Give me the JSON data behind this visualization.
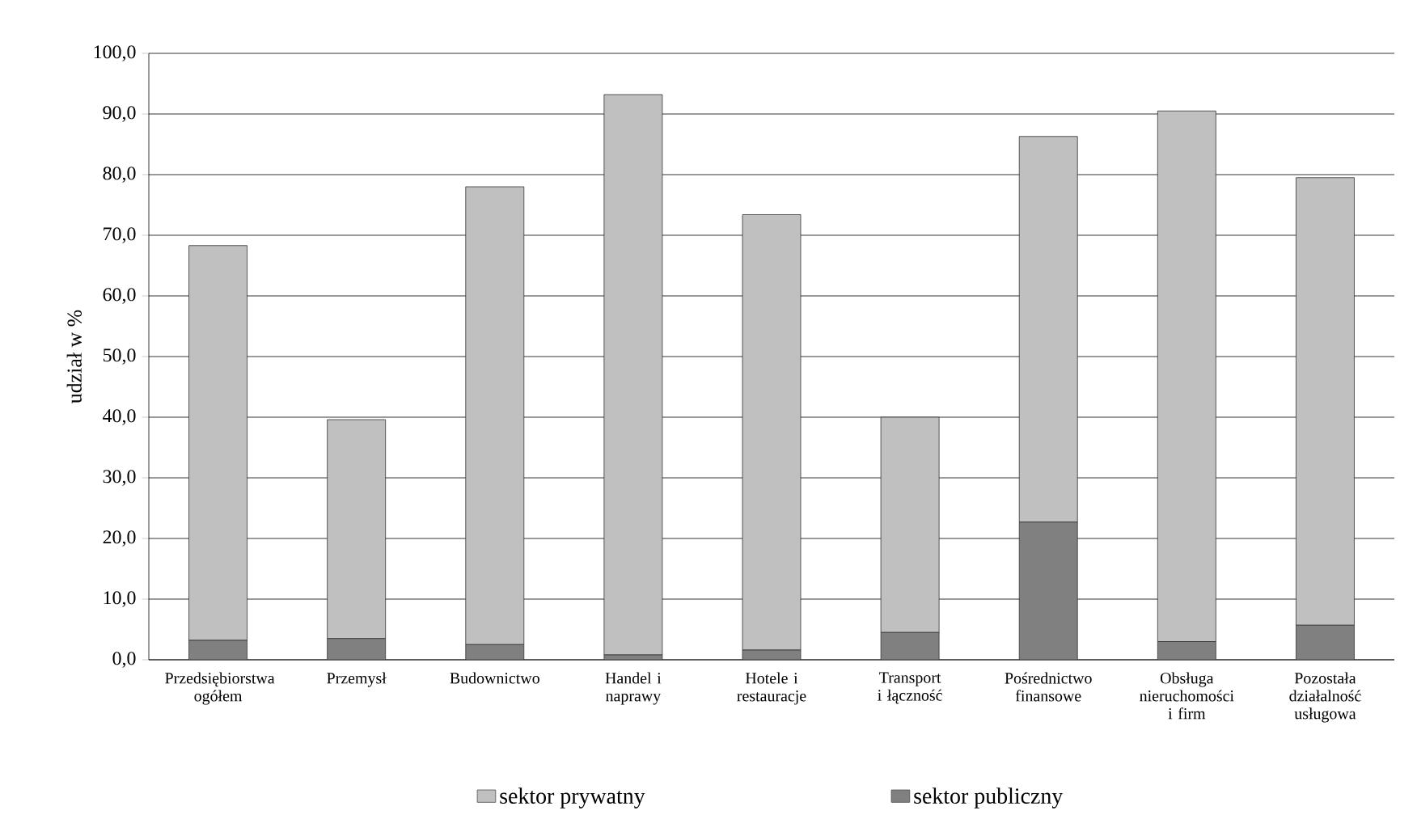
{
  "chart_data": {
    "type": "bar",
    "stacked": true,
    "ylabel": "udział w %",
    "categories": [
      "Przedsiębiorstwa ogółem",
      "Przemysł",
      "Budownictwo",
      "Handel i naprawy",
      "Hotele i restauracje",
      "Transport i łączność",
      "Pośrednictwo finansowe",
      "Obsługa nieruchomości i firm",
      "Pozostała działalność usługowa"
    ],
    "series": [
      {
        "name": "sektor publiczny",
        "color": "#808080",
        "values": [
          3.2,
          3.5,
          2.5,
          0.8,
          1.6,
          4.5,
          22.7,
          3.0,
          5.7
        ]
      },
      {
        "name": "sektor prywatny",
        "color": "#c0c0c0",
        "values": [
          65.1,
          36.1,
          75.5,
          92.4,
          71.8,
          35.5,
          63.6,
          87.5,
          73.8
        ]
      }
    ],
    "ylim": [
      0,
      100
    ],
    "yticks": [
      {
        "value": 0,
        "label": "0,0"
      },
      {
        "value": 10,
        "label": "10,0"
      },
      {
        "value": 20,
        "label": "20,0"
      },
      {
        "value": 30,
        "label": "30,0"
      },
      {
        "value": 40,
        "label": "40,0"
      },
      {
        "value": 50,
        "label": "50,0"
      },
      {
        "value": 60,
        "label": "60,0"
      },
      {
        "value": 70,
        "label": "70,0"
      },
      {
        "value": 80,
        "label": "80,0"
      },
      {
        "value": 90,
        "label": "90,0"
      },
      {
        "value": 100,
        "label": "100,0"
      }
    ],
    "grid": "y",
    "legend": "bottom"
  }
}
